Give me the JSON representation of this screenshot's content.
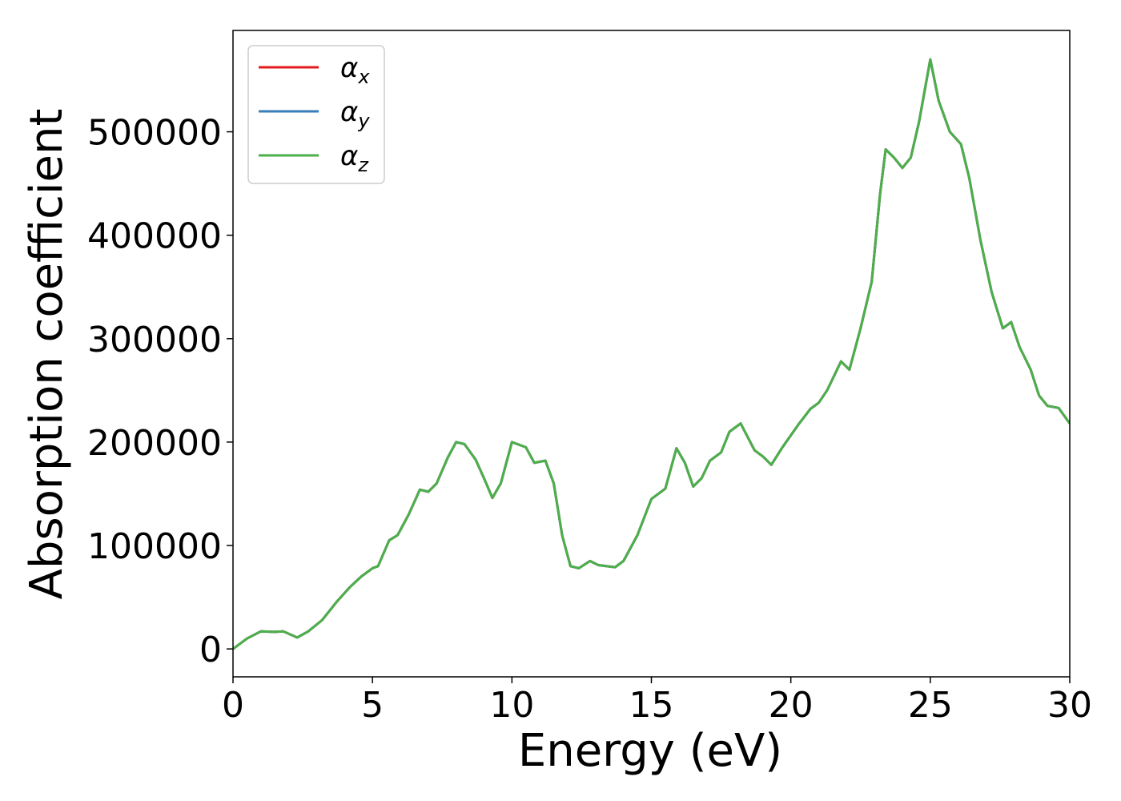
{
  "chart_data": {
    "type": "line",
    "xlabel": "Energy (eV)",
    "ylabel": "Absorption coefficient",
    "x": [
      0,
      0.5,
      1.0,
      1.5,
      1.8,
      2.3,
      2.7,
      3.2,
      3.7,
      4.2,
      4.6,
      5.0,
      5.2,
      5.6,
      5.9,
      6.3,
      6.7,
      7.0,
      7.3,
      7.7,
      8.0,
      8.3,
      8.7,
      9.0,
      9.3,
      9.6,
      10.0,
      10.5,
      10.8,
      11.2,
      11.5,
      11.8,
      12.1,
      12.4,
      12.8,
      13.1,
      13.7,
      14.0,
      14.5,
      15.0,
      15.5,
      15.9,
      16.2,
      16.5,
      16.8,
      17.1,
      17.5,
      17.8,
      18.2,
      18.7,
      19.0,
      19.3,
      19.7,
      20.3,
      20.7,
      21.0,
      21.3,
      21.8,
      22.1,
      22.5,
      22.9,
      23.2,
      23.4,
      23.7,
      24.0,
      24.3,
      24.6,
      25.0,
      25.3,
      25.7,
      26.1,
      26.4,
      26.8,
      27.2,
      27.6,
      27.9,
      28.2,
      28.6,
      28.9,
      29.2,
      29.6,
      30.0
    ],
    "series": [
      {
        "name": "αx",
        "color": "#e41a1c",
        "values": [
          0,
          10000,
          17000,
          16500,
          17000,
          11000,
          17000,
          28000,
          45000,
          60000,
          70000,
          78000,
          80000,
          105000,
          110000,
          130000,
          154000,
          152000,
          160000,
          185000,
          200000,
          198000,
          183000,
          165000,
          146000,
          160000,
          200000,
          195000,
          180000,
          182000,
          160000,
          110000,
          80000,
          78000,
          85000,
          81000,
          79000,
          85000,
          110000,
          145000,
          155000,
          194000,
          180000,
          157000,
          165000,
          182000,
          190000,
          210000,
          218000,
          192000,
          186000,
          178000,
          195000,
          218000,
          232000,
          238000,
          250000,
          278000,
          270000,
          310000,
          355000,
          440000,
          483000,
          475000,
          465000,
          475000,
          510000,
          570000,
          530000,
          500000,
          488000,
          455000,
          395000,
          345000,
          310000,
          316000,
          292000,
          270000,
          245000,
          235000,
          233000,
          218000
        ]
      },
      {
        "name": "αy",
        "color": "#377eb8",
        "values": [
          0,
          10000,
          17000,
          16500,
          17000,
          11000,
          17000,
          28000,
          45000,
          60000,
          70000,
          78000,
          80000,
          105000,
          110000,
          130000,
          154000,
          152000,
          160000,
          185000,
          200000,
          198000,
          183000,
          165000,
          146000,
          160000,
          200000,
          195000,
          180000,
          182000,
          160000,
          110000,
          80000,
          78000,
          85000,
          81000,
          79000,
          85000,
          110000,
          145000,
          155000,
          194000,
          180000,
          157000,
          165000,
          182000,
          190000,
          210000,
          218000,
          192000,
          186000,
          178000,
          195000,
          218000,
          232000,
          238000,
          250000,
          278000,
          270000,
          310000,
          355000,
          440000,
          483000,
          475000,
          465000,
          475000,
          510000,
          570000,
          530000,
          500000,
          488000,
          455000,
          395000,
          345000,
          310000,
          316000,
          292000,
          270000,
          245000,
          235000,
          233000,
          218000
        ]
      },
      {
        "name": "αz",
        "color": "#4daf4a",
        "values": [
          0,
          10000,
          17000,
          16500,
          17000,
          11000,
          17000,
          28000,
          45000,
          60000,
          70000,
          78000,
          80000,
          105000,
          110000,
          130000,
          154000,
          152000,
          160000,
          185000,
          200000,
          198000,
          183000,
          165000,
          146000,
          160000,
          200000,
          195000,
          180000,
          182000,
          160000,
          110000,
          80000,
          78000,
          85000,
          81000,
          79000,
          85000,
          110000,
          145000,
          155000,
          194000,
          180000,
          157000,
          165000,
          182000,
          190000,
          210000,
          218000,
          192000,
          186000,
          178000,
          195000,
          218000,
          232000,
          238000,
          250000,
          278000,
          270000,
          310000,
          355000,
          440000,
          483000,
          475000,
          465000,
          475000,
          510000,
          570000,
          530000,
          500000,
          488000,
          455000,
          395000,
          345000,
          310000,
          316000,
          292000,
          270000,
          245000,
          235000,
          233000,
          218000
        ]
      }
    ],
    "xlim": [
      0,
      30
    ],
    "xticks": [
      0,
      5,
      10,
      15,
      20,
      25,
      30
    ],
    "ylim": [
      -27000,
      598000
    ],
    "yticks": [
      0,
      100000,
      200000,
      300000,
      400000,
      500000
    ],
    "legend": "upper left"
  }
}
